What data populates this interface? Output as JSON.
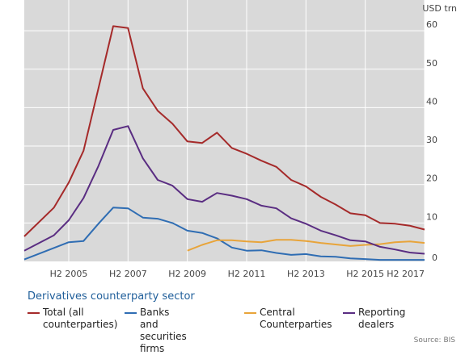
{
  "chart_data": {
    "type": "line",
    "unit": "USD trn",
    "xlim": [
      2004.0,
      2017.5
    ],
    "ylim": [
      0,
      68
    ],
    "yticks": [
      0,
      10,
      20,
      30,
      40,
      50,
      60
    ],
    "xticks": [
      {
        "label": "H2 2005",
        "x": 2005.5
      },
      {
        "label": "H2 2007",
        "x": 2007.5
      },
      {
        "label": "H2 2009",
        "x": 2009.5
      },
      {
        "label": "H2 2011",
        "x": 2011.5
      },
      {
        "label": "H2 2013",
        "x": 2013.5
      },
      {
        "label": "H2 2015",
        "x": 2015.5
      },
      {
        "label": "H2 2017",
        "x": 2017.5
      }
    ],
    "grid": true,
    "background": "#d9d9d9",
    "series": [
      {
        "name": "Total (all counterparties)",
        "color": "#a52a2a",
        "x": [
          2004.0,
          2005.0,
          2005.5,
          2006.0,
          2006.5,
          2007.0,
          2007.5,
          2008.0,
          2008.5,
          2009.0,
          2009.5,
          2010.0,
          2010.5,
          2011.0,
          2011.5,
          2012.0,
          2012.5,
          2013.0,
          2013.5,
          2014.0,
          2014.5,
          2015.0,
          2015.5,
          2016.0,
          2016.5,
          2017.0,
          2017.5
        ],
        "y": [
          6.5,
          14.0,
          20.5,
          28.8,
          45.0,
          61.2,
          60.7,
          45.0,
          39.2,
          35.8,
          31.2,
          30.8,
          33.5,
          29.5,
          28.0,
          26.2,
          24.6,
          21.2,
          19.5,
          16.8,
          14.8,
          12.5,
          12.0,
          10.0,
          9.8,
          9.3,
          8.3
        ]
      },
      {
        "name": "Banks and securities firms",
        "color": "#2f6db3",
        "x": [
          2004.0,
          2005.0,
          2005.5,
          2006.0,
          2006.5,
          2007.0,
          2007.5,
          2008.0,
          2008.5,
          2009.0,
          2009.5,
          2010.0,
          2010.5,
          2011.0,
          2011.5,
          2012.0,
          2012.5,
          2013.0,
          2013.5,
          2014.0,
          2014.5,
          2015.0,
          2015.5,
          2016.0,
          2016.5,
          2017.0,
          2017.5
        ],
        "y": [
          0.5,
          3.5,
          5.0,
          5.3,
          9.8,
          14.0,
          13.8,
          11.4,
          11.1,
          10.0,
          8.0,
          7.4,
          6.0,
          3.6,
          2.8,
          2.9,
          2.2,
          1.7,
          1.9,
          1.3,
          1.2,
          0.8,
          0.6,
          0.4,
          0.4,
          0.4,
          0.4
        ]
      },
      {
        "name": "Central\nCounterparties",
        "color": "#e8a43a",
        "x": [
          2009.5,
          2010.0,
          2010.5,
          2011.0,
          2011.5,
          2012.0,
          2012.5,
          2013.0,
          2013.5,
          2014.0,
          2014.5,
          2015.0,
          2015.5,
          2016.0,
          2016.5,
          2017.0,
          2017.5
        ],
        "y": [
          2.8,
          4.3,
          5.5,
          5.5,
          5.2,
          5.0,
          5.6,
          5.6,
          5.3,
          4.8,
          4.4,
          4.0,
          4.3,
          4.5,
          5.0,
          5.2,
          4.8
        ]
      },
      {
        "name": "Reporting dealers",
        "color": "#5a2d82",
        "x": [
          2004.0,
          2005.0,
          2005.5,
          2006.0,
          2006.5,
          2007.0,
          2007.5,
          2008.0,
          2008.5,
          2009.0,
          2009.5,
          2010.0,
          2010.5,
          2011.0,
          2011.5,
          2012.0,
          2012.5,
          2013.0,
          2013.5,
          2014.0,
          2014.5,
          2015.0,
          2015.5,
          2016.0,
          2016.5,
          2017.0,
          2017.5
        ],
        "y": [
          2.8,
          6.8,
          10.7,
          16.5,
          24.8,
          34.2,
          35.2,
          26.8,
          21.2,
          19.7,
          16.2,
          15.5,
          17.8,
          17.1,
          16.2,
          14.5,
          13.8,
          11.2,
          9.8,
          8.0,
          6.8,
          5.5,
          5.2,
          3.8,
          3.1,
          2.3,
          2.0
        ]
      }
    ],
    "legend_title": "Derivatives counterparty sector",
    "legend": [
      {
        "label": "Total (all\ncounterparties)",
        "color": "#a52a2a"
      },
      {
        "label": "Banks and securities\nfirms",
        "color": "#2f6db3"
      },
      {
        "label": "Central\nCounterparties",
        "color": "#e8a43a"
      },
      {
        "label": "Reporting dealers",
        "color": "#5a2d82"
      }
    ],
    "source": "Source: BIS"
  }
}
